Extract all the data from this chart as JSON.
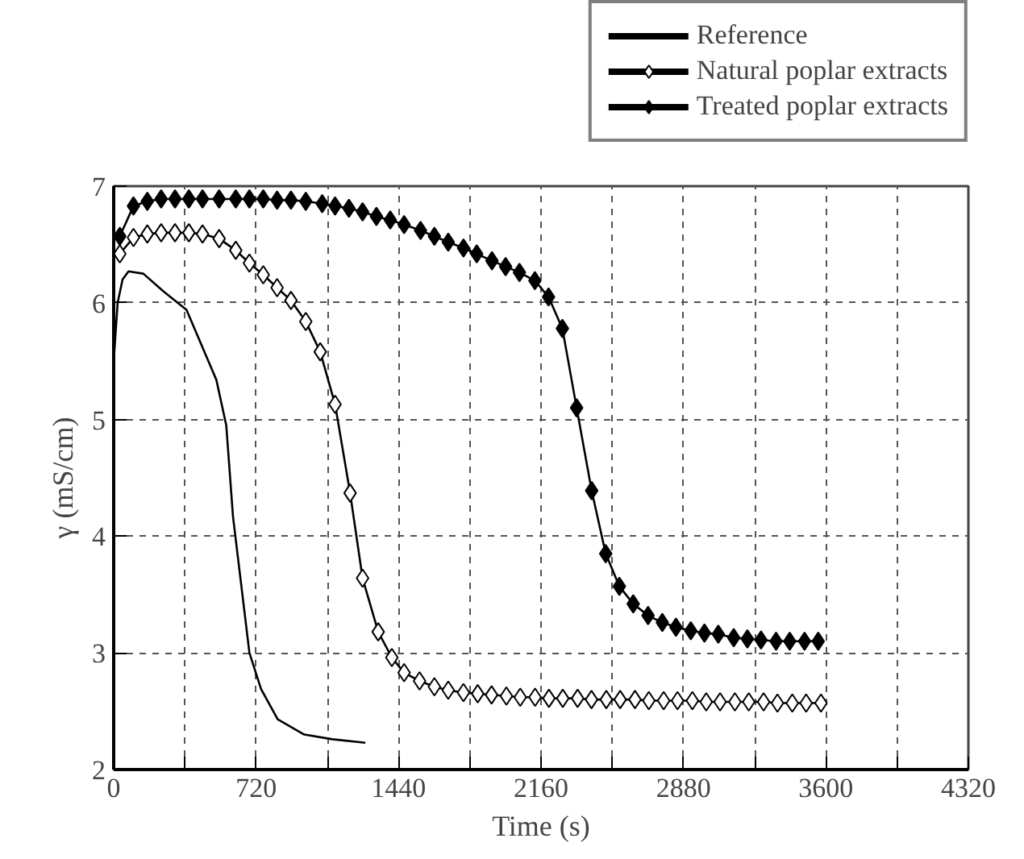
{
  "chart_data": {
    "type": "line",
    "xlabel": "Time (s)",
    "ylabel": "γ (mS/cm)",
    "xlim": [
      0,
      4320
    ],
    "ylim": [
      2,
      7
    ],
    "xticks": [
      0,
      {
        "value": 360,
        "label": null
      },
      720,
      {
        "value": 1080,
        "label": null
      },
      1440,
      {
        "value": 1800,
        "label": null
      },
      2160,
      {
        "value": 2520,
        "label": null
      },
      2880,
      {
        "value": 3240,
        "label": null
      },
      3600,
      {
        "value": 3960,
        "label": null
      },
      4320
    ],
    "yticks": [
      2,
      3,
      4,
      5,
      6,
      7
    ],
    "grid": true,
    "legend": "top right",
    "line_style": "solid",
    "series": [
      {
        "name": "Reference",
        "color": "#000000",
        "marker": "none",
        "x": [
          0,
          20,
          45,
          75,
          150,
          250,
          368,
          519,
          569,
          603,
          686,
          745,
          829,
          963,
          1105,
          1272
        ],
        "values": [
          5.5,
          6.0,
          6.2,
          6.27,
          6.25,
          6.1,
          5.94,
          5.34,
          4.95,
          4.17,
          3.0,
          2.69,
          2.43,
          2.3,
          2.26,
          2.23
        ]
      },
      {
        "name": "Natural poplar extracts",
        "color": "#000000",
        "marker": "diamond",
        "colors": [
          "#ffffff",
          "#ffffff",
          "#ffffff",
          "#ffffff",
          "#ffffff",
          "#ffffff",
          "#ffffff",
          "#ffffff",
          "#ffffff",
          "#ffffff",
          "#ffffff",
          "#ffffff",
          "#ffffff",
          "#ffffff",
          "#ffffff",
          "#ffffff",
          "#ffffff",
          "#ffffff",
          "#ffffff",
          "#ffffff",
          "#ffffff",
          "#ffffff",
          "#ffffff",
          "#ffffff",
          "#ffffff",
          "#ffffff",
          "#ffffff",
          "#ffffff",
          "#ffffff",
          "#ffffff",
          "#ffffff",
          "#ffffff",
          "#ffffff",
          "#ffffff",
          "#ffffff",
          "#ffffff",
          "#ffffff",
          "#ffffff",
          "#ffffff",
          "#ffffff",
          "#ffffff",
          "#ffffff",
          "#ffffff",
          "#ffffff",
          "#ffffff",
          "#ffffff",
          "#ffffff",
          "#ffffff",
          "#ffffff",
          "#ffffff"
        ],
        "x": [
          31,
          100,
          170,
          240,
          310,
          380,
          449,
          533,
          617,
          686,
          756,
          826,
          896,
          971,
          1044,
          1119,
          1195,
          1258,
          1337,
          1406,
          1468,
          1546,
          1621,
          1691,
          1768,
          1840,
          1910,
          1985,
          2055,
          2130,
          2200,
          2270,
          2345,
          2415,
          2490,
          2560,
          2635,
          2705,
          2780,
          2850,
          2925,
          2995,
          3065,
          3140,
          3210,
          3285,
          3355,
          3430,
          3500,
          3575
        ],
        "values": [
          6.42,
          6.56,
          6.59,
          6.6,
          6.6,
          6.6,
          6.59,
          6.55,
          6.45,
          6.34,
          6.24,
          6.13,
          6.02,
          5.84,
          5.58,
          5.13,
          4.37,
          3.64,
          3.18,
          2.96,
          2.83,
          2.76,
          2.71,
          2.68,
          2.66,
          2.65,
          2.64,
          2.63,
          2.62,
          2.62,
          2.61,
          2.61,
          2.61,
          2.6,
          2.6,
          2.6,
          2.6,
          2.59,
          2.59,
          2.59,
          2.59,
          2.58,
          2.58,
          2.58,
          2.58,
          2.58,
          2.57,
          2.57,
          2.57,
          2.57
        ]
      },
      {
        "name": "Treated poplar extracts",
        "color": "#000000",
        "marker": "diamond",
        "x": [
          31,
          100,
          170,
          240,
          310,
          380,
          449,
          533,
          617,
          686,
          756,
          826,
          896,
          971,
          1054,
          1119,
          1189,
          1258,
          1328,
          1398,
          1468,
          1551,
          1621,
          1691,
          1768,
          1835,
          1912,
          1981,
          2051,
          2129,
          2198,
          2268,
          2340,
          2416,
          2487,
          2556,
          2626,
          2701,
          2773,
          2842,
          2917,
          2986,
          3056,
          3134,
          3203,
          3272,
          3348,
          3417,
          3492,
          3561
        ],
        "values": [
          6.57,
          6.83,
          6.87,
          6.89,
          6.89,
          6.89,
          6.89,
          6.89,
          6.89,
          6.89,
          6.89,
          6.88,
          6.88,
          6.87,
          6.85,
          6.83,
          6.81,
          6.78,
          6.74,
          6.71,
          6.67,
          6.62,
          6.57,
          6.52,
          6.47,
          6.42,
          6.36,
          6.31,
          6.26,
          6.19,
          6.05,
          5.78,
          5.1,
          4.39,
          3.85,
          3.57,
          3.42,
          3.32,
          3.26,
          3.22,
          3.19,
          3.17,
          3.16,
          3.13,
          3.12,
          3.11,
          3.1,
          3.1,
          3.1,
          3.1
        ]
      }
    ]
  }
}
